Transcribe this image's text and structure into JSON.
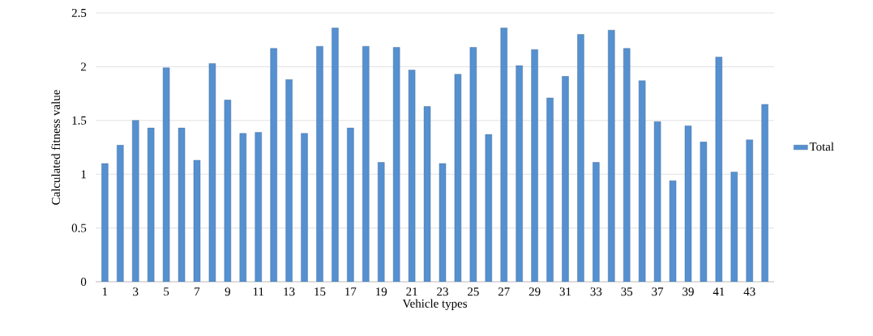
{
  "chart_data": {
    "type": "bar",
    "xlabel": "Vehicle types",
    "ylabel": "Calculated fitness value",
    "categories": [
      "1",
      null,
      "3",
      null,
      "5",
      null,
      "7",
      null,
      "9",
      null,
      "11",
      null,
      "13",
      null,
      "15",
      null,
      "17",
      null,
      "19",
      null,
      "21",
      null,
      "23",
      null,
      "25",
      null,
      "27",
      null,
      "29",
      null,
      "31",
      null,
      "33",
      null,
      "35",
      null,
      "37",
      null,
      "39",
      null,
      "41",
      null,
      "43",
      null
    ],
    "series": [
      {
        "name": "Total",
        "color": "#5590d0",
        "values": [
          1.1,
          1.27,
          1.5,
          1.43,
          1.99,
          1.43,
          1.13,
          2.03,
          1.69,
          1.38,
          1.39,
          2.17,
          1.88,
          1.38,
          2.19,
          2.36,
          1.43,
          2.19,
          1.11,
          2.18,
          1.97,
          1.63,
          1.1,
          1.93,
          2.18,
          1.37,
          2.36,
          2.01,
          2.16,
          1.71,
          1.91,
          2.3,
          1.11,
          2.34,
          2.17,
          1.87,
          1.49,
          0.94,
          1.45,
          1.3,
          2.09,
          1.02,
          1.32,
          1.65
        ]
      }
    ],
    "ylim": [
      0,
      2.5
    ],
    "yticks": [
      0,
      0.5,
      1,
      1.5,
      2,
      2.5
    ],
    "grid": "y",
    "legend": "right"
  }
}
